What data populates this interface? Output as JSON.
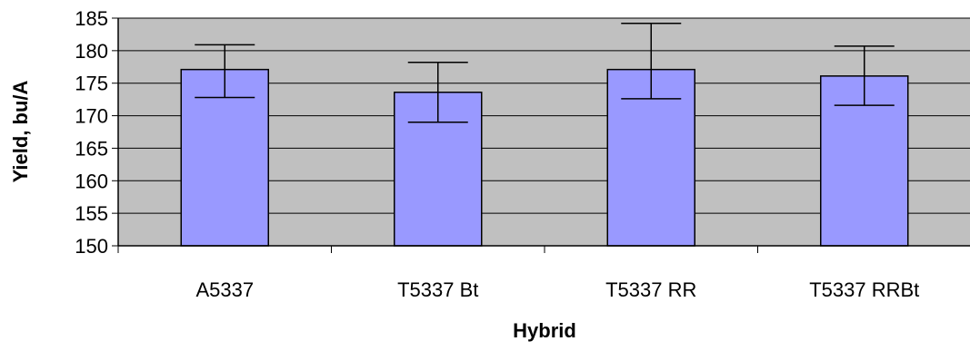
{
  "chart_data": {
    "type": "bar",
    "title": "",
    "xlabel": "Hybrid",
    "ylabel": "Yield, bu/A",
    "categories": [
      "A5337",
      "T5337 Bt",
      "T5337 RR",
      "T5337 RRBt"
    ],
    "values": [
      177.1,
      173.6,
      177.1,
      176.1
    ],
    "error_low": [
      172.8,
      169.0,
      172.6,
      171.6
    ],
    "error_high": [
      180.9,
      178.2,
      184.2,
      180.7
    ],
    "ylim": [
      150,
      185
    ],
    "yticks": [
      "150",
      "155",
      "160",
      "165",
      "170",
      "175",
      "180",
      "185"
    ],
    "grid": true,
    "legend": "none",
    "colors": {
      "bar_fill": "#9999ff",
      "bar_stroke": "#000000",
      "plot_background": "#c0c0c0",
      "gridline": "#000000"
    }
  }
}
